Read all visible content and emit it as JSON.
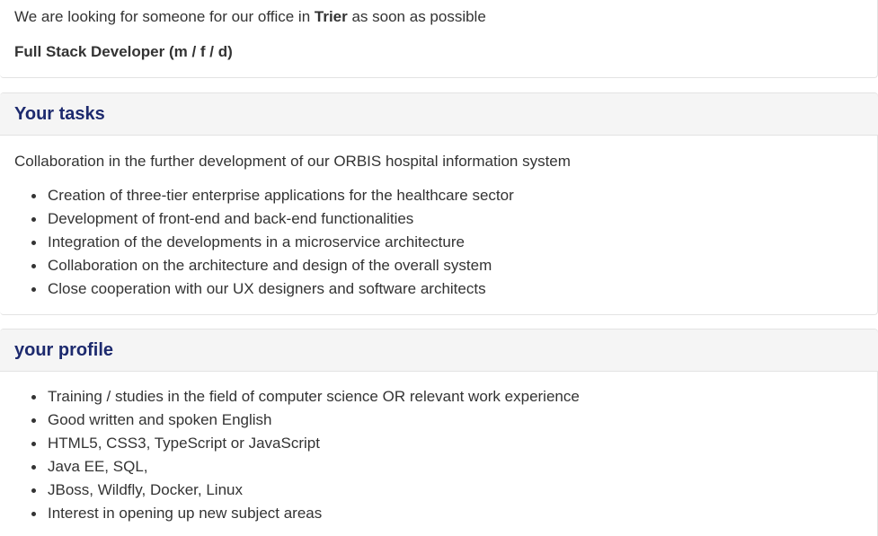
{
  "intro": {
    "text_before": "We are looking for someone for our office in ",
    "location": "Trier",
    "text_after": " as soon as possible",
    "job_title": "Full Stack Developer (m / f / d)"
  },
  "tasks": {
    "title": "Your tasks",
    "intro": "Collaboration in the further development of our ORBIS hospital information system",
    "items": [
      "Creation of three-tier enterprise applications for the healthcare sector",
      "Development of front-end and back-end functionalities",
      "Integration of the developments in a microservice architecture",
      "Collaboration on the architecture and design of the overall system",
      "Close cooperation with our UX designers and software architects"
    ]
  },
  "profile": {
    "title": "your profile",
    "items": [
      "Training / studies in the field of computer science OR relevant work experience",
      "Good written and spoken English",
      "HTML5, CSS3, TypeScript or JavaScript",
      "Java EE, SQL,",
      "JBoss, Wildfly, Docker, Linux",
      "Interest in opening up new subject areas"
    ]
  },
  "colors": {
    "heading": "#1d2a6e",
    "text": "#333333",
    "header_bg": "#f5f5f5"
  }
}
